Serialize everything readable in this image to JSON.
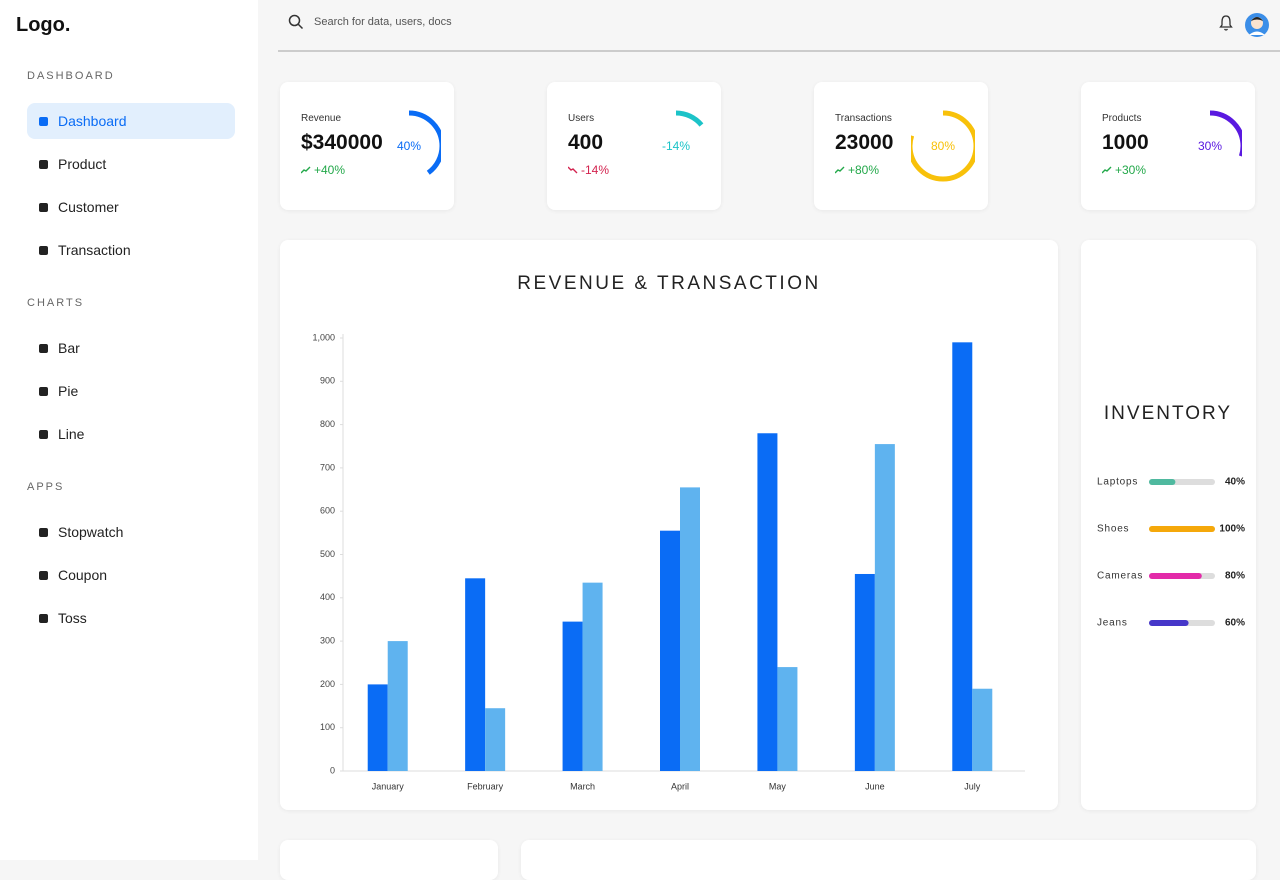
{
  "sidebar": {
    "logo": "Logo.",
    "sections": [
      {
        "title": "DASHBOARD",
        "items": [
          "Dashboard",
          "Product",
          "Customer",
          "Transaction"
        ]
      },
      {
        "title": "CHARTS",
        "items": [
          "Bar",
          "Pie",
          "Line"
        ]
      },
      {
        "title": "APPS",
        "items": [
          "Stopwatch",
          "Coupon",
          "Toss"
        ]
      }
    ],
    "active": "Dashboard"
  },
  "header": {
    "search_placeholder": "Search for data, users, docs"
  },
  "stats": [
    {
      "label": "Revenue",
      "value": "$340000",
      "change": "+40%",
      "trend": "up",
      "percent": 40,
      "percent_label": "40%",
      "color": "#0a6cf5"
    },
    {
      "label": "Users",
      "value": "400",
      "change": "-14%",
      "trend": "down",
      "percent": -14,
      "percent_label": "-14%",
      "color": "#1cc3c8"
    },
    {
      "label": "Transactions",
      "value": "23000",
      "change": "+80%",
      "trend": "up",
      "percent": 80,
      "percent_label": "80%",
      "color": "#f8c10a"
    },
    {
      "label": "Products",
      "value": "1000",
      "change": "+30%",
      "trend": "up",
      "percent": 30,
      "percent_label": "30%",
      "color": "#5a19e0"
    }
  ],
  "chart_data": {
    "type": "bar",
    "title": "REVENUE & TRANSACTION",
    "categories": [
      "January",
      "February",
      "March",
      "April",
      "May",
      "June",
      "July"
    ],
    "series": [
      {
        "color": "#0a6cf5",
        "values": [
          200,
          445,
          345,
          555,
          780,
          455,
          990
        ]
      },
      {
        "color": "#5fb3ef",
        "values": [
          300,
          145,
          435,
          655,
          240,
          755,
          190
        ]
      }
    ],
    "ylim": [
      0,
      1000
    ],
    "yticks": [
      0,
      100,
      200,
      300,
      400,
      500,
      600,
      700,
      800,
      900,
      {
        "value": 1000,
        "label": "1,000"
      }
    ],
    "grid": false
  },
  "inventory": {
    "title": "INVENTORY",
    "items": [
      {
        "name": "Laptops",
        "value": 40,
        "value_label": "40%",
        "color": "#4fb99f"
      },
      {
        "name": "Shoes",
        "value": 100,
        "value_label": "100%",
        "color": "#f5a80a"
      },
      {
        "name": "Cameras",
        "value": 80,
        "value_label": "80%",
        "color": "#e32aa9"
      },
      {
        "name": "Jeans",
        "value": 60,
        "value_label": "60%",
        "color": "#4637c9"
      }
    ]
  }
}
